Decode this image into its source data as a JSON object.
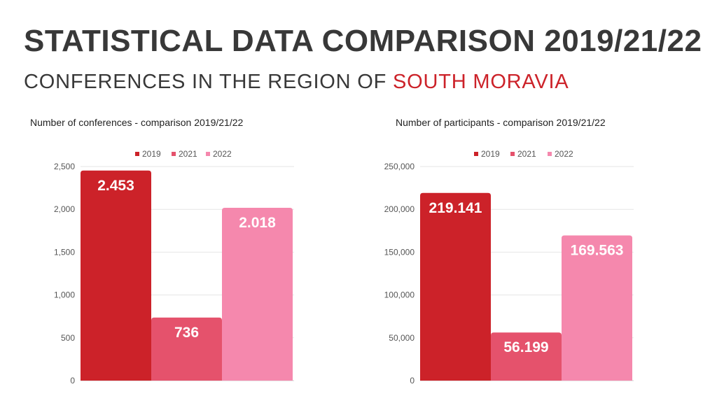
{
  "header": {
    "title": "STATISTICAL DATA COMPARISON 2019/21/22",
    "subtitle_prefix": "CONFERENCES  IN THE REGION OF ",
    "subtitle_highlight": "SOUTH MORAVIA"
  },
  "colors": {
    "accent": "#cc2229",
    "series": [
      "#cc2229",
      "#e5526c",
      "#f588ad"
    ]
  },
  "chart_data": [
    {
      "type": "bar",
      "title": "Number of conferences - comparison 2019/21/22",
      "series": [
        {
          "name": "2019",
          "values": [
            2453
          ],
          "label": "2.453"
        },
        {
          "name": "2021",
          "values": [
            736
          ],
          "label": "736"
        },
        {
          "name": "2022",
          "values": [
            2018
          ],
          "label": "2.018"
        }
      ],
      "yticks": [
        0,
        500,
        1000,
        1500,
        2000,
        2500
      ],
      "ytick_labels": [
        "0",
        "500",
        "1,000",
        "1,500",
        "2,000",
        "2,500"
      ],
      "ylim": [
        0,
        2500
      ],
      "grid": true,
      "legend": "top-center"
    },
    {
      "type": "bar",
      "title": "Number of participants - comparison 2019/21/22",
      "series": [
        {
          "name": "2019",
          "values": [
            219141
          ],
          "label": "219.141"
        },
        {
          "name": "2021",
          "values": [
            56199
          ],
          "label": "56.199"
        },
        {
          "name": "2022",
          "values": [
            169563
          ],
          "label": "169.563"
        }
      ],
      "yticks": [
        0,
        50000,
        100000,
        150000,
        200000,
        250000
      ],
      "ytick_labels": [
        "0",
        "50,000",
        "100,000",
        "150,000",
        "200,000",
        "250,000"
      ],
      "ylim": [
        0,
        250000
      ],
      "grid": true,
      "legend": "top-center"
    }
  ]
}
